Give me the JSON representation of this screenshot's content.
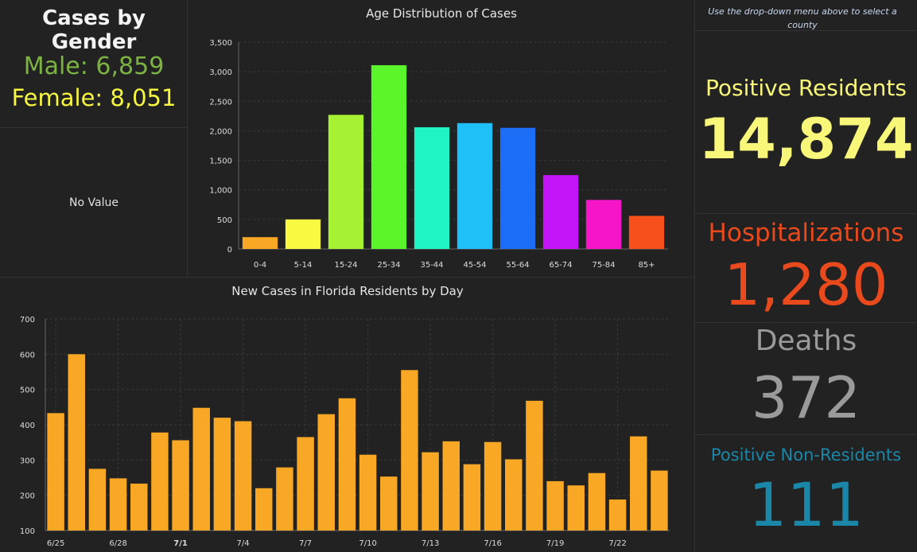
{
  "gender": {
    "title": "Cases by Gender",
    "male": "Male: 6,859",
    "female": "Female: 8,051",
    "no_value": "No Value"
  },
  "hint": "Use the drop-down menu above to select a county",
  "stats": {
    "positive_residents_label": "Positive Residents",
    "positive_residents_value": "14,874",
    "hospitalizations_label": "Hospitalizations",
    "hospitalizations_value": "1,280",
    "deaths_label": "Deaths",
    "deaths_value": "372",
    "nonresidents_label": "Positive Non-Residents",
    "nonresidents_value": "111"
  },
  "colors": {
    "residents": "#f9f77a",
    "hospitalizations": "#e8491d",
    "deaths": "#9a9a9a",
    "nonresidents": "#1a87a8",
    "bar_daily": "#f9a826",
    "grid": "#3a3a3a"
  },
  "chart_data": [
    {
      "type": "bar",
      "title": "Age Distribution of Cases",
      "categories": [
        "0-4",
        "5-14",
        "15-24",
        "25-34",
        "35-44",
        "45-54",
        "55-64",
        "65-74",
        "75-84",
        "85+"
      ],
      "values": [
        200,
        500,
        2270,
        3110,
        2060,
        2130,
        2050,
        1250,
        830,
        560
      ],
      "colors": [
        "#f9a826",
        "#f9f941",
        "#a6f232",
        "#5af52a",
        "#1ff5c4",
        "#1ec0f7",
        "#1d6ef7",
        "#c315f7",
        "#f715c9",
        "#f7501c"
      ],
      "yticks": [
        "0",
        "500",
        "1,000",
        "1,500",
        "2,000",
        "2,500",
        "3,000",
        "3,500"
      ],
      "ylim": [
        0,
        3500
      ]
    },
    {
      "type": "bar",
      "title": "New Cases in Florida Residents by Day",
      "values": [
        433,
        600,
        275,
        248,
        233,
        378,
        356,
        448,
        420,
        410,
        220,
        279,
        365,
        430,
        475,
        315,
        253,
        555,
        322,
        353,
        288,
        351,
        302,
        468,
        240,
        228,
        263,
        188,
        367,
        270
      ],
      "xtick_labels": [
        "6/25",
        "6/28",
        "7/1",
        "7/4",
        "7/7",
        "7/10",
        "7/13",
        "7/16",
        "7/19",
        "7/22"
      ],
      "xtick_every": 3,
      "yticks": [
        "100",
        "200",
        "300",
        "400",
        "500",
        "600",
        "700"
      ],
      "ylim": [
        100,
        700
      ]
    }
  ]
}
